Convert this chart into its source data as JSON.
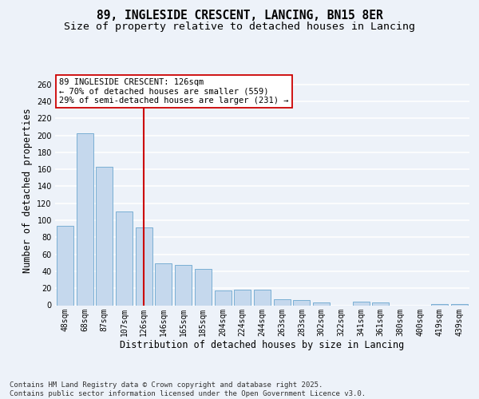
{
  "title_line1": "89, INGLESIDE CRESCENT, LANCING, BN15 8ER",
  "title_line2": "Size of property relative to detached houses in Lancing",
  "xlabel": "Distribution of detached houses by size in Lancing",
  "ylabel": "Number of detached properties",
  "categories": [
    "48sqm",
    "68sqm",
    "87sqm",
    "107sqm",
    "126sqm",
    "146sqm",
    "165sqm",
    "185sqm",
    "204sqm",
    "224sqm",
    "244sqm",
    "263sqm",
    "283sqm",
    "302sqm",
    "322sqm",
    "341sqm",
    "361sqm",
    "380sqm",
    "400sqm",
    "419sqm",
    "439sqm"
  ],
  "values": [
    93,
    202,
    163,
    110,
    92,
    49,
    47,
    43,
    17,
    18,
    18,
    7,
    6,
    3,
    0,
    4,
    3,
    0,
    0,
    1,
    1
  ],
  "bar_color": "#c5d8ed",
  "bar_edge_color": "#7aafd4",
  "vline_index": 4,
  "vline_color": "#cc0000",
  "annotation_line1": "89 INGLESIDE CRESCENT: 126sqm",
  "annotation_line2": "← 70% of detached houses are smaller (559)",
  "annotation_line3": "29% of semi-detached houses are larger (231) →",
  "annotation_box_color": "#ffffff",
  "annotation_box_edge": "#cc0000",
  "ylim": [
    0,
    270
  ],
  "yticks": [
    0,
    20,
    40,
    60,
    80,
    100,
    120,
    140,
    160,
    180,
    200,
    220,
    240,
    260
  ],
  "footer_line1": "Contains HM Land Registry data © Crown copyright and database right 2025.",
  "footer_line2": "Contains public sector information licensed under the Open Government Licence v3.0.",
  "background_color": "#edf2f9",
  "grid_color": "#ffffff",
  "title_fontsize": 10.5,
  "subtitle_fontsize": 9.5,
  "axis_label_fontsize": 8.5,
  "tick_fontsize": 7,
  "annotation_fontsize": 7.5,
  "footer_fontsize": 6.5,
  "ylabel_fontsize": 8.5
}
